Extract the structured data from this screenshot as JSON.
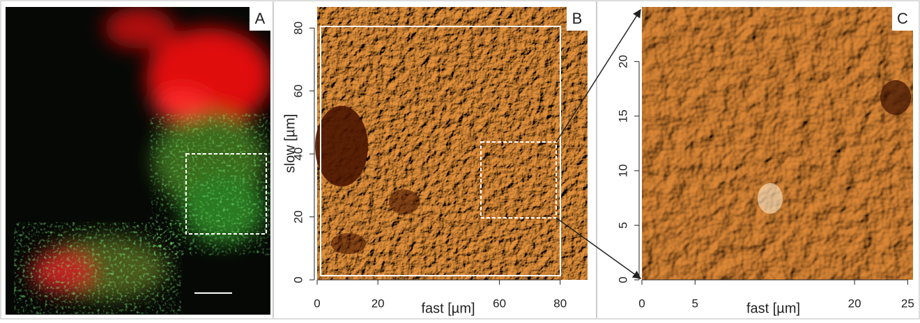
{
  "panels": [
    {
      "label": "A"
    },
    {
      "label": "B",
      "x_label": "fast [µm]",
      "y_label": "slow [µm]",
      "xlim": [
        0,
        89
      ],
      "xticks": [
        0,
        20,
        60,
        80
      ],
      "ylim": [
        0,
        86.7
      ],
      "yticks": [
        0,
        20,
        40,
        60,
        80
      ]
    },
    {
      "label": "C",
      "x_label": "fast [µm]",
      "xlim": [
        0,
        25.5
      ],
      "xticks": [
        0,
        5,
        20,
        25
      ],
      "ylim": [
        0,
        25
      ],
      "yticks": [
        0,
        5,
        10,
        15,
        20
      ]
    }
  ]
}
